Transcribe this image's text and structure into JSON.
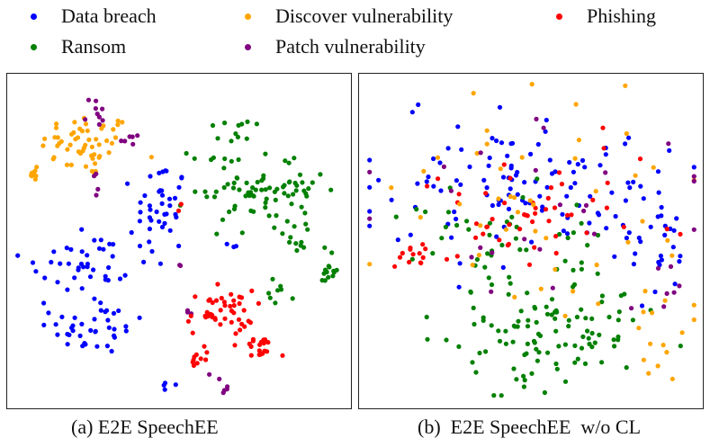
{
  "legend": [
    {
      "key": "data_breach",
      "label": "Data breach",
      "color": "#0000ff"
    },
    {
      "key": "discover_vulnerability",
      "label": "Discover vulnerability",
      "color": "#ffa500"
    },
    {
      "key": "phishing",
      "label": "Phishing",
      "color": "#ff0000"
    },
    {
      "key": "ransom",
      "label": "Ransom",
      "color": "#008000"
    },
    {
      "key": "patch_vulnerability",
      "label": "Patch vulnerability",
      "color": "#800080"
    }
  ],
  "chart_data": [
    {
      "type": "scatter",
      "title": "",
      "caption": "(a) E2E SpeechEE",
      "xlabel": "",
      "ylabel": "",
      "xlim": [
        0,
        100
      ],
      "ylim": [
        0,
        100
      ],
      "axes_ticks": false,
      "clusters": [
        {
          "series": "discover_vulnerability",
          "groups": [
            {
              "cx": 22,
              "cy": 80,
              "sx": 7,
              "sy": 5,
              "n": 55
            },
            {
              "cx": 6,
              "cy": 72,
              "sx": 1.2,
              "sy": 1.5,
              "n": 9
            }
          ]
        },
        {
          "series": "patch_vulnerability",
          "groups": [
            {
              "cx": 24,
              "cy": 90,
              "sx": 2,
              "sy": 3,
              "n": 9
            },
            {
              "cx": 35,
              "cy": 82,
              "sx": 1.5,
              "sy": 1.5,
              "n": 6
            },
            {
              "cx": 24,
              "cy": 68,
              "sx": 1,
              "sy": 2,
              "n": 4
            },
            {
              "cx": 64,
              "cy": 6,
              "sx": 2,
              "sy": 2.5,
              "n": 6
            },
            {
              "cx": 52,
              "cy": 27,
              "sx": 1,
              "sy": 2,
              "n": 3
            },
            {
              "cx": 50,
              "cy": 44,
              "sx": 0.5,
              "sy": 2,
              "n": 2
            }
          ]
        },
        {
          "series": "data_breach",
          "groups": [
            {
              "cx": 21,
              "cy": 42,
              "sx": 10,
              "sy": 8,
              "n": 45
            },
            {
              "cx": 24,
              "cy": 23,
              "sx": 7,
              "sy": 4,
              "n": 35
            },
            {
              "cx": 44,
              "cy": 60,
              "sx": 4,
              "sy": 8,
              "n": 40
            },
            {
              "cx": 47,
              "cy": 6,
              "sx": 1,
              "sy": 0.8,
              "n": 4
            },
            {
              "cx": 67,
              "cy": 49,
              "sx": 2,
              "sy": 1,
              "n": 3
            }
          ]
        },
        {
          "series": "ransom",
          "groups": [
            {
              "cx": 65,
              "cy": 68,
              "sx": 6,
              "sy": 8,
              "n": 45
            },
            {
              "cx": 83,
              "cy": 66,
              "sx": 6,
              "sy": 5,
              "n": 40
            },
            {
              "cx": 85,
              "cy": 52,
              "sx": 3,
              "sy": 3,
              "n": 12
            },
            {
              "cx": 95,
              "cy": 41,
              "sx": 1.5,
              "sy": 4,
              "n": 14
            },
            {
              "cx": 81,
              "cy": 35,
              "sx": 2,
              "sy": 2,
              "n": 8
            },
            {
              "cx": 68,
              "cy": 85,
              "sx": 5,
              "sy": 2,
              "n": 6
            }
          ]
        },
        {
          "series": "phishing",
          "groups": [
            {
              "cx": 62,
              "cy": 28,
              "sx": 5,
              "sy": 3.5,
              "n": 45
            },
            {
              "cx": 74,
              "cy": 17,
              "sx": 2.5,
              "sy": 2,
              "n": 18
            },
            {
              "cx": 55,
              "cy": 14,
              "sx": 2,
              "sy": 2,
              "n": 10
            },
            {
              "cx": 50,
              "cy": 62,
              "sx": 0.5,
              "sy": 1,
              "n": 2
            }
          ]
        }
      ]
    },
    {
      "type": "scatter",
      "title": "",
      "caption": "(b)  E2E SpeechEE  w/o CL",
      "xlabel": "",
      "ylabel": "",
      "xlim": [
        0,
        100
      ],
      "ylim": [
        0,
        100
      ],
      "axes_ticks": false,
      "clusters": [
        {
          "series": "data_breach",
          "groups": [
            {
              "cx": 45,
              "cy": 70,
              "sx": 22,
              "sy": 12,
              "n": 110
            },
            {
              "cx": 85,
              "cy": 48,
              "sx": 7,
              "sy": 10,
              "n": 30
            }
          ]
        },
        {
          "series": "ransom",
          "groups": [
            {
              "cx": 55,
              "cy": 22,
              "sx": 17,
              "sy": 9,
              "n": 110
            },
            {
              "cx": 40,
              "cy": 52,
              "sx": 16,
              "sy": 7,
              "n": 40
            }
          ]
        },
        {
          "series": "phishing",
          "groups": [
            {
              "cx": 42,
              "cy": 58,
              "sx": 14,
              "sy": 7,
              "n": 40
            },
            {
              "cx": 14,
              "cy": 45,
              "sx": 3,
              "sy": 3,
              "n": 12
            },
            {
              "cx": 70,
              "cy": 65,
              "sx": 10,
              "sy": 6,
              "n": 12
            }
          ]
        },
        {
          "series": "discover_vulnerability",
          "groups": [
            {
              "cx": 60,
              "cy": 62,
              "sx": 25,
              "sy": 18,
              "n": 45
            },
            {
              "cx": 90,
              "cy": 22,
              "sx": 5,
              "sy": 10,
              "n": 15
            }
          ]
        },
        {
          "series": "patch_vulnerability",
          "groups": [
            {
              "cx": 55,
              "cy": 60,
              "sx": 25,
              "sy": 16,
              "n": 25
            },
            {
              "cx": 93,
              "cy": 38,
              "sx": 3,
              "sy": 5,
              "n": 6
            }
          ]
        }
      ]
    }
  ]
}
